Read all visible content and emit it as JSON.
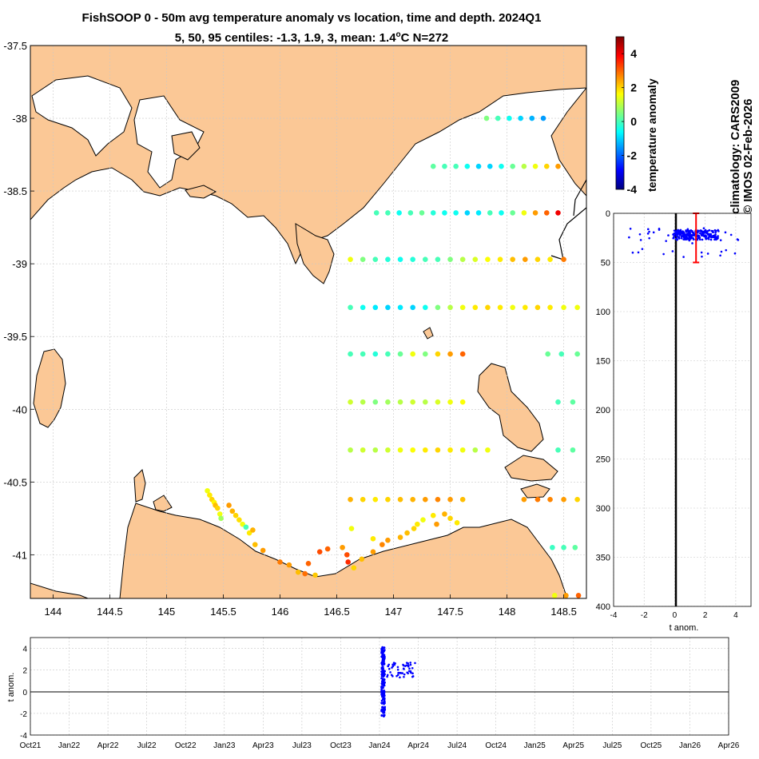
{
  "title_line1": "FishSOOP 0 - 50m avg temperature anomaly vs location, time and depth. 2024Q1",
  "title_line2_prefix": "5, 50, 95 centiles: -1.3, 1.9, 3, mean: 1.4",
  "title_line2_unit": "o",
  "title_line2_suffix": "C N=272",
  "side_label_1": "climatology: CARS2009",
  "side_label_2": "© IMOS 02-Feb-2026",
  "colorbar": {
    "label": "temperature anomaly",
    "ticks": [
      "4",
      "2",
      "0",
      "-2",
      "-4"
    ],
    "range": [
      -4,
      5
    ]
  },
  "colors": {
    "land": "#fbc896",
    "series": "#0000ff",
    "mean_marker": "#ff0000"
  },
  "chart_data": [
    {
      "type": "scatter",
      "name": "map",
      "xlim": [
        143.8,
        148.7
      ],
      "ylim": [
        -41.3,
        -37.5
      ],
      "x_ticks": [
        "144",
        "144.5",
        "145",
        "145.5",
        "146",
        "146.5",
        "147",
        "147.5",
        "148",
        "148.5"
      ],
      "y_ticks": [
        "-37.5",
        "-38",
        "-38.5",
        "-39",
        "-39.5",
        "-40",
        "-40.5",
        "-41"
      ],
      "grid": true,
      "rows": [
        {
          "lat": -38.0,
          "lon": [
            147.82,
            147.92,
            148.02,
            148.12,
            148.22,
            148.32
          ],
          "anom": [
            0.5,
            0.0,
            -0.5,
            -1.0,
            -1.3,
            -1.5
          ]
        },
        {
          "lat": -38.33,
          "lon": [
            147.35,
            147.45,
            147.55,
            147.65,
            147.75,
            147.85,
            147.95,
            148.05,
            148.15,
            148.25,
            148.35,
            148.45
          ],
          "anom": [
            0.2,
            0.0,
            0.0,
            -0.5,
            -1.0,
            -1.0,
            -0.5,
            0.3,
            1.0,
            1.5,
            2.0,
            2.5
          ]
        },
        {
          "lat": -38.65,
          "lon": [
            146.85,
            146.95,
            147.05,
            147.15,
            147.25,
            147.35,
            147.45,
            147.55,
            147.65,
            147.75,
            147.85,
            147.95,
            148.05,
            148.15,
            148.25,
            148.35,
            148.45
          ],
          "anom": [
            0.0,
            0.0,
            -0.5,
            0.0,
            0.3,
            -0.3,
            -0.5,
            -0.5,
            -1.0,
            -0.8,
            0.0,
            -0.5,
            0.3,
            1.5,
            2.5,
            3.0,
            4.0
          ]
        },
        {
          "lat": -38.97,
          "lon": [
            146.62,
            146.73,
            146.84,
            146.95,
            147.06,
            147.17,
            147.28,
            147.39,
            147.5,
            147.61,
            147.72,
            147.83,
            147.94,
            148.05,
            148.16,
            148.27,
            148.38,
            148.5
          ],
          "anom": [
            1.5,
            0.5,
            0.0,
            -0.3,
            -0.5,
            -0.3,
            0.0,
            0.0,
            0.5,
            1.0,
            1.3,
            1.6,
            1.8,
            2.2,
            2.5,
            2.0,
            1.8,
            2.8
          ]
        },
        {
          "lat": -39.3,
          "lon": [
            146.62,
            146.73,
            146.84,
            146.95,
            147.06,
            147.17,
            147.28,
            147.39,
            147.5,
            147.61,
            147.72,
            147.83,
            147.94,
            148.05,
            148.16,
            148.27,
            148.38,
            148.5,
            148.62
          ],
          "anom": [
            0.0,
            -0.5,
            -0.8,
            -1.0,
            -0.8,
            -1.0,
            -0.5,
            0.5,
            1.0,
            1.5,
            1.8,
            2.0,
            1.8,
            1.5,
            1.8,
            2.0,
            1.8,
            1.5,
            1.5
          ]
        },
        {
          "lat": -39.62,
          "lon": [
            146.62,
            146.73,
            146.84,
            146.95,
            147.06,
            147.17,
            147.28,
            147.39,
            147.5,
            147.61,
            148.36,
            148.48,
            148.62
          ],
          "anom": [
            0.0,
            0.0,
            -0.3,
            0.0,
            0.3,
            1.5,
            0.5,
            2.0,
            2.5,
            3.0,
            0.3,
            0.0,
            0.3
          ]
        },
        {
          "lat": -39.95,
          "lon": [
            146.62,
            146.73,
            146.84,
            146.95,
            147.06,
            147.17,
            147.28,
            147.39,
            147.5,
            147.61,
            148.45,
            148.58
          ],
          "anom": [
            1.2,
            1.0,
            0.5,
            0.8,
            1.0,
            1.2,
            1.0,
            1.3,
            1.5,
            1.6,
            0.0,
            0.2
          ]
        },
        {
          "lat": -40.28,
          "lon": [
            146.62,
            146.73,
            146.84,
            146.95,
            147.06,
            147.17,
            147.28,
            147.39,
            147.5,
            147.61,
            147.72,
            147.83,
            148.45,
            148.58
          ],
          "anom": [
            1.0,
            1.2,
            1.0,
            1.2,
            1.5,
            1.6,
            1.8,
            2.0,
            1.8,
            1.5,
            1.0,
            1.5,
            0.0,
            0.2
          ]
        },
        {
          "lat": -40.62,
          "lon": [
            146.62,
            146.73,
            146.84,
            146.95,
            147.06,
            147.17,
            147.28,
            147.39,
            147.5,
            147.61,
            148.15,
            148.27,
            148.38,
            148.5,
            148.62
          ],
          "anom": [
            2.3,
            2.0,
            1.8,
            2.0,
            2.2,
            2.3,
            2.5,
            2.7,
            2.5,
            2.2,
            2.5,
            2.8,
            2.7,
            2.5,
            2.0
          ]
        },
        {
          "lat": -40.95,
          "lon": [
            148.4,
            148.5,
            148.6
          ],
          "anom": [
            -0.1,
            0.0,
            0.2
          ]
        },
        {
          "lat": -41.28,
          "lon": [
            148.42,
            148.52,
            148.63
          ],
          "anom": [
            1.5,
            2.5,
            3.0
          ]
        }
      ],
      "track_points": [
        [
          145.36,
          -40.56,
          1.5
        ],
        [
          145.38,
          -40.59,
          1.8
        ],
        [
          145.4,
          -40.62,
          2.0
        ],
        [
          145.42,
          -40.64,
          1.7
        ],
        [
          145.43,
          -40.66,
          2.2
        ],
        [
          145.45,
          -40.68,
          2.0
        ],
        [
          145.47,
          -40.72,
          1.5
        ],
        [
          145.48,
          -40.75,
          0.8
        ],
        [
          145.55,
          -40.66,
          2.5
        ],
        [
          145.58,
          -40.7,
          2.3
        ],
        [
          145.61,
          -40.73,
          2.0
        ],
        [
          145.64,
          -40.76,
          1.9
        ],
        [
          145.67,
          -40.79,
          1.5
        ],
        [
          145.7,
          -40.81,
          0.0
        ],
        [
          145.73,
          -40.85,
          1.8
        ],
        [
          145.76,
          -40.83,
          2.3
        ],
        [
          145.78,
          -40.93,
          2.2
        ],
        [
          145.85,
          -40.97,
          2.5
        ],
        [
          146.0,
          -41.05,
          2.8
        ],
        [
          146.08,
          -41.07,
          2.5
        ],
        [
          146.16,
          -41.12,
          2.2
        ],
        [
          146.25,
          -41.06,
          3.0
        ],
        [
          146.35,
          -40.98,
          3.2
        ],
        [
          146.42,
          -40.96,
          3.0
        ],
        [
          146.55,
          -40.95,
          2.5
        ],
        [
          146.59,
          -41.0,
          3.2
        ],
        [
          146.6,
          -41.05,
          3.5
        ],
        [
          146.65,
          -41.09,
          2.0
        ],
        [
          146.72,
          -41.03,
          2.2
        ],
        [
          146.82,
          -40.98,
          2.5
        ],
        [
          146.9,
          -40.93,
          2.7
        ],
        [
          146.95,
          -40.9,
          2.5
        ],
        [
          147.06,
          -40.88,
          2.3
        ],
        [
          147.12,
          -40.85,
          2.2
        ],
        [
          147.18,
          -40.82,
          2.0
        ],
        [
          147.21,
          -40.79,
          1.8
        ],
        [
          147.26,
          -40.76,
          1.5
        ],
        [
          147.35,
          -40.73,
          1.8
        ],
        [
          147.45,
          -40.72,
          2.3
        ],
        [
          147.5,
          -40.75,
          2.0
        ],
        [
          147.56,
          -40.78,
          1.8
        ],
        [
          147.38,
          -40.79,
          2.5
        ],
        [
          146.22,
          -41.13,
          2.9
        ],
        [
          146.31,
          -41.14,
          2.1
        ],
        [
          146.63,
          -40.82,
          1.5
        ],
        [
          146.82,
          -40.89,
          1.8
        ]
      ]
    },
    {
      "type": "scatter",
      "name": "depth profile",
      "xlabel": "t anom.",
      "xlim": [
        -4,
        5
      ],
      "ylim": [
        0,
        400
      ],
      "x_ticks": [
        "-4",
        "-2",
        "0",
        "2",
        "4"
      ],
      "y_ticks": [
        "0",
        "50",
        "100",
        "150",
        "200",
        "250",
        "300",
        "350",
        "400"
      ],
      "grid": true,
      "mean": 1.4,
      "errorbar": [
        0,
        50
      ],
      "depth_range": [
        15,
        45
      ],
      "anom_range": [
        -3.0,
        4.5
      ],
      "point_count": 272
    },
    {
      "type": "scatter",
      "name": "time series",
      "ylabel": "t anom.",
      "xlim": [
        "Oct21",
        "Apr26"
      ],
      "ylim": [
        -4,
        5
      ],
      "x_ticks": [
        "Oct21",
        "Jan22",
        "Apr22",
        "Jul22",
        "Oct22",
        "Jan23",
        "Apr23",
        "Jul23",
        "Oct23",
        "Jan24",
        "Apr24",
        "Jul24",
        "Oct24",
        "Jan25",
        "Apr25",
        "Jul25",
        "Oct25",
        "Jan26",
        "Apr26"
      ],
      "y_ticks": [
        "4",
        "2",
        "0",
        "-2",
        "-4"
      ],
      "grid": true,
      "point_count": 272
    }
  ]
}
